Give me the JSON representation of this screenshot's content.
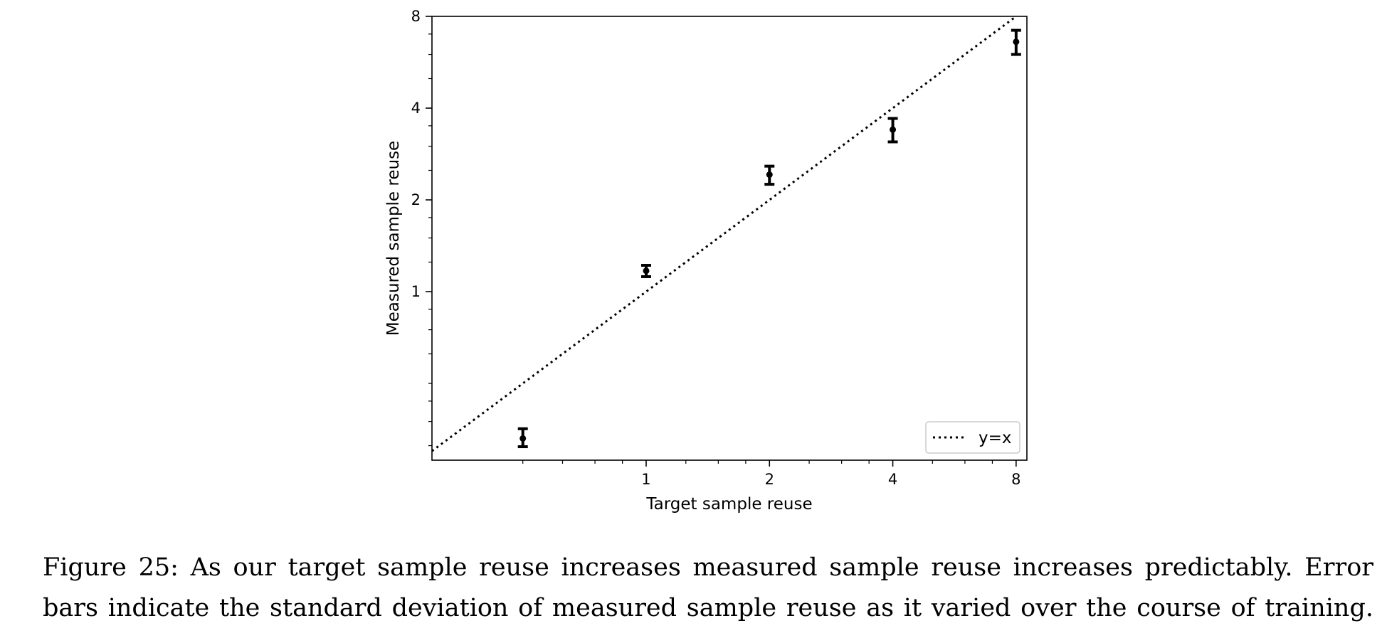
{
  "chart_data": {
    "type": "scatter",
    "xscale": "log2",
    "yscale": "log2",
    "xlabel": "Target sample reuse",
    "ylabel": "Measured sample reuse",
    "xlim": [
      0.3,
      8.5
    ],
    "ylim": [
      0.28,
      8
    ],
    "x_ticks": [
      1,
      2,
      4,
      8
    ],
    "x_tick_labels": [
      "1",
      "2",
      "4",
      "8"
    ],
    "y_ticks": [
      1,
      2,
      4,
      8
    ],
    "y_tick_labels": [
      "1",
      "2",
      "4",
      "8"
    ],
    "grid": false,
    "legend": {
      "position": "bottom-right",
      "entries": [
        {
          "label": "y=x",
          "style": "dotted"
        }
      ]
    },
    "reference_line": {
      "label": "y=x",
      "style": "dotted"
    },
    "points": [
      {
        "x": 0.5,
        "y": 0.33,
        "err_low": 0.31,
        "err_high": 0.355
      },
      {
        "x": 1,
        "y": 1.17,
        "err_low": 1.12,
        "err_high": 1.22
      },
      {
        "x": 2,
        "y": 2.42,
        "err_low": 2.25,
        "err_high": 2.58
      },
      {
        "x": 4,
        "y": 3.4,
        "err_low": 3.1,
        "err_high": 3.7
      },
      {
        "x": 8,
        "y": 6.6,
        "err_low": 6.0,
        "err_high": 7.2
      }
    ]
  },
  "caption": {
    "line1": "Figure 25: As our target sample reuse increases measured sample reuse increases predictably. Error",
    "line2": "bars indicate the standard deviation of measured sample reuse as it varied over the course of training."
  }
}
